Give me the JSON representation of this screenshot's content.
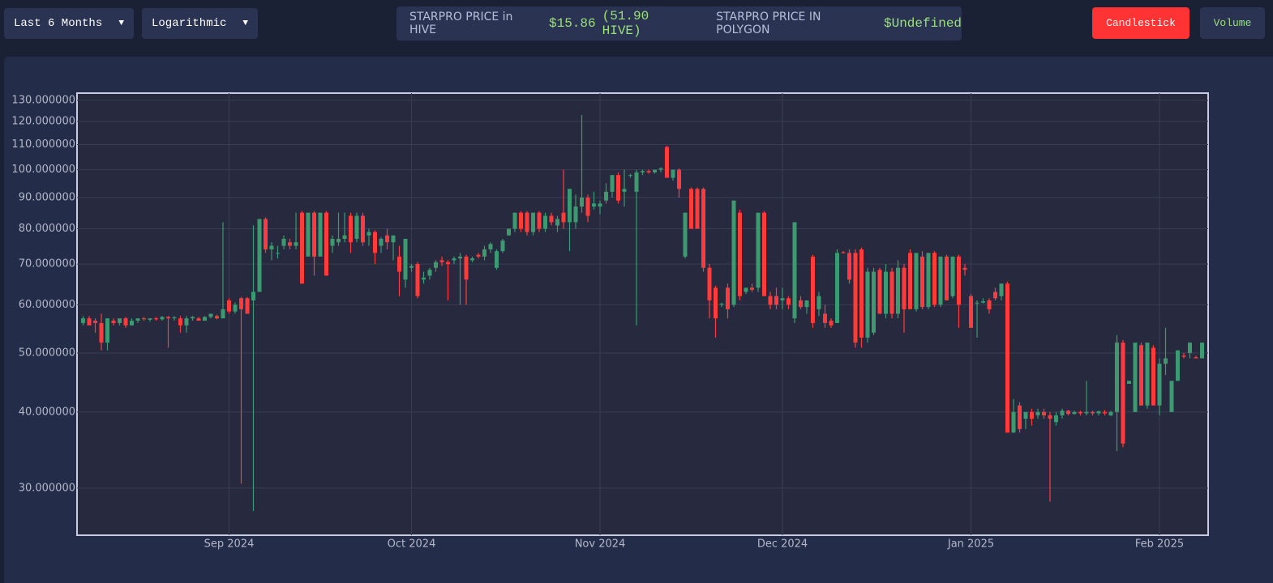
{
  "controls": {
    "range": "Last 6 Months",
    "scale": "Logarithmic",
    "price_hive_label": "STARPRO PRICE in HIVE",
    "price_hive_value": "$15.86",
    "price_hive_in_hive": "(51.90 HIVE)",
    "price_polygon_label": "STARPRO PRICE IN POLYGON",
    "price_polygon_value": "$Undefined",
    "candlestick_button": "Candlestick",
    "volume_button": "Volume"
  },
  "chart_data": {
    "type": "candlestick",
    "log_scale": true,
    "grid": true,
    "up_color": "#3d9970",
    "down_color": "#ff3b3b",
    "xlim": [
      "2024-08-07",
      "2025-02-09"
    ],
    "xticks": [
      {
        "value": "2024-09-01",
        "label": "Sep 2024"
      },
      {
        "value": "2024-10-01",
        "label": "Oct 2024"
      },
      {
        "value": "2024-11-01",
        "label": "Nov 2024"
      },
      {
        "value": "2024-12-01",
        "label": "Dec 2024"
      },
      {
        "value": "2025-01-01",
        "label": "Jan 2025"
      },
      {
        "value": "2025-02-01",
        "label": "Feb 2025"
      }
    ],
    "ylim": [
      25.1,
      133.6
    ],
    "yticks": [
      {
        "value": 30,
        "label": "30.000000"
      },
      {
        "value": 40,
        "label": "40.000000"
      },
      {
        "value": 50,
        "label": "50.000000"
      },
      {
        "value": 60,
        "label": "60.000000"
      },
      {
        "value": 70,
        "label": "70.000000"
      },
      {
        "value": 80,
        "label": "80.000000"
      },
      {
        "value": 90,
        "label": "90.000000"
      },
      {
        "value": 100,
        "label": "100.000000"
      },
      {
        "value": 110,
        "label": "110.000000"
      },
      {
        "value": 120,
        "label": "120.000000"
      },
      {
        "value": 130,
        "label": "130.000000"
      }
    ],
    "x": [
      "2024-08-08",
      "2024-08-09",
      "2024-08-10",
      "2024-08-11",
      "2024-08-12",
      "2024-08-13",
      "2024-08-14",
      "2024-08-15",
      "2024-08-16",
      "2024-08-17",
      "2024-08-18",
      "2024-08-19",
      "2024-08-20",
      "2024-08-21",
      "2024-08-22",
      "2024-08-23",
      "2024-08-24",
      "2024-08-25",
      "2024-08-26",
      "2024-08-27",
      "2024-08-28",
      "2024-08-29",
      "2024-08-30",
      "2024-08-31",
      "2024-09-01",
      "2024-09-02",
      "2024-09-03",
      "2024-09-04",
      "2024-09-05",
      "2024-09-06",
      "2024-09-07",
      "2024-09-08",
      "2024-09-09",
      "2024-09-10",
      "2024-09-11",
      "2024-09-12",
      "2024-09-13",
      "2024-09-14",
      "2024-09-15",
      "2024-09-16",
      "2024-09-17",
      "2024-09-18",
      "2024-09-19",
      "2024-09-20",
      "2024-09-21",
      "2024-09-22",
      "2024-09-23",
      "2024-09-24",
      "2024-09-25",
      "2024-09-26",
      "2024-09-27",
      "2024-09-28",
      "2024-09-29",
      "2024-09-30",
      "2024-10-01",
      "2024-10-02",
      "2024-10-03",
      "2024-10-04",
      "2024-10-05",
      "2024-10-06",
      "2024-10-07",
      "2024-10-08",
      "2024-10-09",
      "2024-10-10",
      "2024-10-11",
      "2024-10-12",
      "2024-10-13",
      "2024-10-14",
      "2024-10-15",
      "2024-10-16",
      "2024-10-17",
      "2024-10-18",
      "2024-10-19",
      "2024-10-20",
      "2024-10-21",
      "2024-10-22",
      "2024-10-23",
      "2024-10-24",
      "2024-10-25",
      "2024-10-26",
      "2024-10-27",
      "2024-10-28",
      "2024-10-29",
      "2024-10-30",
      "2024-10-31",
      "2024-11-01",
      "2024-11-02",
      "2024-11-03",
      "2024-11-04",
      "2024-11-05",
      "2024-11-06",
      "2024-11-07",
      "2024-11-08",
      "2024-11-09",
      "2024-11-10",
      "2024-11-11",
      "2024-11-12",
      "2024-11-13",
      "2024-11-14",
      "2024-11-15",
      "2024-11-16",
      "2024-11-17",
      "2024-11-18",
      "2024-11-19",
      "2024-11-20",
      "2024-11-21",
      "2024-11-22",
      "2024-11-23",
      "2024-11-24",
      "2024-11-25",
      "2024-11-26",
      "2024-11-27",
      "2024-11-28",
      "2024-11-29",
      "2024-11-30",
      "2024-12-01",
      "2024-12-02",
      "2024-12-03",
      "2024-12-04",
      "2024-12-05",
      "2024-12-06",
      "2024-12-07",
      "2024-12-08",
      "2024-12-09",
      "2024-12-10",
      "2024-12-11",
      "2024-12-12",
      "2024-12-13",
      "2024-12-14",
      "2024-12-15",
      "2024-12-16",
      "2024-12-17",
      "2024-12-18",
      "2024-12-19",
      "2024-12-20",
      "2024-12-21",
      "2024-12-22",
      "2024-12-23",
      "2024-12-24",
      "2024-12-25",
      "2024-12-26",
      "2024-12-27",
      "2024-12-28",
      "2024-12-29",
      "2024-12-30",
      "2024-12-31",
      "2025-01-01",
      "2025-01-02",
      "2025-01-03",
      "2025-01-04",
      "2025-01-05",
      "2025-01-06",
      "2025-01-07",
      "2025-01-08",
      "2025-01-09",
      "2025-01-10",
      "2025-01-11",
      "2025-01-12",
      "2025-01-13",
      "2025-01-14",
      "2025-01-15",
      "2025-01-16",
      "2025-01-17",
      "2025-01-18",
      "2025-01-19",
      "2025-01-20",
      "2025-01-21",
      "2025-01-22",
      "2025-01-23",
      "2025-01-24",
      "2025-01-25",
      "2025-01-26",
      "2025-01-27",
      "2025-01-28",
      "2025-01-29",
      "2025-01-30",
      "2025-01-31",
      "2025-02-01",
      "2025-02-02",
      "2025-02-03",
      "2025-02-04",
      "2025-02-05",
      "2025-02-06",
      "2025-02-07",
      "2025-02-08"
    ],
    "ohlc": [
      [
        56,
        57.5,
        55.5,
        57
      ],
      [
        57,
        57.5,
        55.5,
        55.5
      ],
      [
        56.5,
        57,
        54,
        56
      ],
      [
        56,
        58,
        50.5,
        52
      ],
      [
        52,
        57,
        50.5,
        57
      ],
      [
        56.5,
        57,
        55.5,
        56
      ],
      [
        56,
        57,
        55.5,
        57
      ],
      [
        57,
        57.3,
        55,
        55.5
      ],
      [
        55.5,
        57,
        55.5,
        56.5
      ],
      [
        56.5,
        57,
        56,
        57
      ],
      [
        57,
        57.3,
        56.5,
        56.8
      ],
      [
        56.7,
        57,
        56.3,
        57
      ],
      [
        57,
        57.3,
        56.5,
        56.8
      ],
      [
        56.8,
        57.5,
        56.5,
        57.3
      ],
      [
        57.3,
        57.5,
        51,
        57
      ],
      [
        57,
        57.5,
        56.5,
        57.2
      ],
      [
        57,
        57.5,
        54,
        55.5
      ],
      [
        55.5,
        57.5,
        54,
        57
      ],
      [
        57,
        57.5,
        56.5,
        57.3
      ],
      [
        57,
        57.3,
        56.5,
        56.5
      ],
      [
        56.5,
        57.5,
        56.5,
        57.3
      ],
      [
        57.3,
        58,
        57,
        58
      ],
      [
        57.5,
        57.8,
        56.8,
        57
      ],
      [
        57,
        82,
        57,
        59
      ],
      [
        61,
        61.5,
        58,
        58.5
      ],
      [
        58.5,
        60.5,
        58,
        60
      ],
      [
        61.5,
        61.8,
        30.5,
        59
      ],
      [
        61.5,
        61.8,
        58,
        58
      ],
      [
        61,
        81,
        27.5,
        63
      ],
      [
        63,
        83,
        63,
        83
      ],
      [
        83,
        83.5,
        73,
        74
      ],
      [
        74,
        76,
        71,
        75
      ],
      [
        73,
        75,
        71.5,
        73
      ],
      [
        75,
        78,
        74,
        77
      ],
      [
        76,
        77,
        74,
        75
      ],
      [
        75,
        85,
        74,
        76
      ],
      [
        85,
        85.5,
        65,
        65
      ],
      [
        72,
        85,
        72,
        85
      ],
      [
        85,
        85.5,
        67,
        72
      ],
      [
        72,
        85,
        72,
        85
      ],
      [
        85,
        85.5,
        67,
        67
      ],
      [
        75,
        78,
        73,
        77
      ],
      [
        76,
        85,
        75,
        77
      ],
      [
        77,
        85,
        76,
        78
      ],
      [
        84,
        85,
        73,
        76
      ],
      [
        77,
        85,
        76,
        84
      ],
      [
        84,
        85,
        75,
        76
      ],
      [
        78,
        80,
        75,
        79
      ],
      [
        79,
        79.5,
        70,
        73
      ],
      [
        75,
        77.5,
        73,
        77
      ],
      [
        78,
        80,
        74,
        76
      ],
      [
        76,
        78,
        71,
        78
      ],
      [
        72,
        75,
        62,
        68
      ],
      [
        66,
        77,
        64,
        77
      ],
      [
        69,
        70,
        68,
        69.5
      ],
      [
        70,
        70.5,
        61.5,
        62
      ],
      [
        66,
        68,
        65,
        66.5
      ],
      [
        67,
        69,
        66,
        68.5
      ],
      [
        69,
        71,
        68,
        70.5
      ],
      [
        71,
        72,
        69.5,
        70.5
      ],
      [
        70.5,
        71,
        61,
        70
      ],
      [
        71,
        72,
        70,
        71.5
      ],
      [
        71.5,
        73,
        60,
        72
      ],
      [
        72,
        72.5,
        60,
        66
      ],
      [
        71,
        72,
        70.5,
        71.5
      ],
      [
        72.5,
        73,
        71.5,
        72
      ],
      [
        72,
        75,
        71,
        74
      ],
      [
        74,
        76,
        73,
        75.5
      ],
      [
        69,
        74,
        68.5,
        73.5
      ],
      [
        73.5,
        77,
        73,
        76.5
      ],
      [
        78,
        80,
        78,
        80
      ],
      [
        80,
        85,
        79,
        85
      ],
      [
        85,
        85.5,
        79,
        80
      ],
      [
        85,
        85.5,
        78,
        79
      ],
      [
        79,
        85,
        78,
        85
      ],
      [
        85,
        85.5,
        79,
        80
      ],
      [
        80,
        85,
        79,
        84
      ],
      [
        84,
        85,
        81,
        82
      ],
      [
        81,
        84,
        79,
        83
      ],
      [
        85,
        100,
        80,
        82
      ],
      [
        82,
        93,
        73.5,
        93
      ],
      [
        82,
        91,
        80,
        87
      ],
      [
        87,
        123,
        85,
        90
      ],
      [
        90,
        91,
        82,
        84
      ],
      [
        87,
        92,
        86,
        88
      ],
      [
        87,
        89,
        84.5,
        88
      ],
      [
        89,
        95,
        88,
        92
      ],
      [
        92,
        98,
        90,
        98
      ],
      [
        98,
        99,
        88,
        89
      ],
      [
        92,
        100,
        87,
        93
      ],
      [
        98,
        98.5,
        97,
        98
      ],
      [
        92,
        100,
        55.5,
        99
      ],
      [
        99,
        100,
        98,
        99.5
      ],
      [
        99.5,
        100,
        98.5,
        99
      ],
      [
        99,
        100,
        98.5,
        100
      ],
      [
        100,
        101,
        99,
        100.5
      ],
      [
        109,
        109.5,
        97,
        97
      ],
      [
        97,
        100,
        96,
        100
      ],
      [
        100,
        100.5,
        90,
        93
      ],
      [
        72,
        85,
        71.5,
        85
      ],
      [
        93,
        93.5,
        80,
        80
      ],
      [
        93,
        93.5,
        80,
        80
      ],
      [
        93,
        93.5,
        68,
        69
      ],
      [
        69,
        70,
        57,
        61
      ],
      [
        64,
        64.5,
        53,
        57
      ],
      [
        60,
        60.5,
        59.5,
        60.2
      ],
      [
        64,
        65,
        57,
        59
      ],
      [
        60,
        89,
        59.5,
        89
      ],
      [
        85,
        86,
        61,
        62
      ],
      [
        63,
        64,
        62.5,
        64
      ],
      [
        64,
        65,
        63,
        63.5
      ],
      [
        64,
        85,
        63,
        85
      ],
      [
        85,
        85.5,
        62,
        62
      ],
      [
        62,
        63,
        59,
        60
      ],
      [
        62,
        64,
        59,
        60
      ],
      [
        61,
        64,
        59,
        61.5
      ],
      [
        61.5,
        62,
        59,
        60
      ],
      [
        57,
        82,
        56,
        82
      ],
      [
        61,
        62,
        59,
        59.5
      ],
      [
        59.5,
        61,
        58,
        61
      ],
      [
        72,
        72.5,
        55,
        56
      ],
      [
        59,
        63,
        57.5,
        62
      ],
      [
        58,
        60,
        55,
        56
      ],
      [
        56.5,
        57,
        55,
        55.5
      ],
      [
        56,
        74,
        56,
        73
      ],
      [
        73.2,
        73.5,
        72.8,
        73
      ],
      [
        73,
        74,
        65,
        66
      ],
      [
        73,
        74,
        51,
        52
      ],
      [
        74,
        74.5,
        51,
        53
      ],
      [
        53,
        69,
        52,
        68
      ],
      [
        54,
        69,
        53.5,
        68
      ],
      [
        68.5,
        69,
        58,
        58
      ],
      [
        58,
        70,
        57,
        68
      ],
      [
        68,
        69,
        57,
        58
      ],
      [
        58,
        71,
        57,
        69
      ],
      [
        69,
        70,
        54,
        59
      ],
      [
        73,
        74,
        59,
        59
      ],
      [
        59,
        73,
        58.5,
        73
      ],
      [
        72,
        73.5,
        59,
        59.5
      ],
      [
        59.5,
        73,
        59,
        73
      ],
      [
        73,
        73.5,
        59.5,
        60
      ],
      [
        60,
        72,
        59.5,
        72
      ],
      [
        72,
        72.5,
        61,
        61
      ],
      [
        62,
        72,
        61.5,
        72
      ],
      [
        72,
        72.5,
        55,
        60
      ],
      [
        69,
        70,
        67,
        68.5
      ],
      [
        62,
        62.5,
        55,
        55
      ],
      [
        60.3,
        61,
        53,
        60.5
      ],
      [
        60.5,
        61.5,
        60.3,
        60.8
      ],
      [
        61,
        61.5,
        58,
        59
      ],
      [
        63,
        64,
        61,
        61.5
      ],
      [
        62,
        65,
        61,
        65
      ],
      [
        65,
        65.5,
        37,
        37
      ],
      [
        37,
        42,
        37,
        40
      ],
      [
        41,
        41.5,
        37,
        37.5
      ],
      [
        39,
        40,
        37.5,
        40
      ],
      [
        40,
        40.5,
        38,
        39
      ],
      [
        39.5,
        40.5,
        39,
        40
      ],
      [
        40,
        40.5,
        39,
        39.5
      ],
      [
        39.5,
        40,
        28.5,
        39
      ],
      [
        38.5,
        40,
        38,
        39.5
      ],
      [
        39.5,
        40.5,
        39,
        40.2
      ],
      [
        40.2,
        40.3,
        39.5,
        39.7
      ],
      [
        39.7,
        40.2,
        39.6,
        40
      ],
      [
        40,
        40.2,
        39.5,
        39.8
      ],
      [
        39.8,
        45,
        39.5,
        40
      ],
      [
        40,
        40.2,
        39.5,
        39.8
      ],
      [
        39.8,
        40.2,
        39.5,
        40.1
      ],
      [
        40,
        40.3,
        39.5,
        39.8
      ],
      [
        39.5,
        40.2,
        39.4,
        40
      ],
      [
        40,
        53.5,
        34.5,
        52
      ],
      [
        52,
        52.5,
        35,
        35.5
      ],
      [
        44.5,
        45,
        44.5,
        45
      ],
      [
        40,
        52,
        40,
        52
      ],
      [
        51.5,
        52,
        41,
        41
      ],
      [
        41,
        52,
        40.5,
        52
      ],
      [
        51,
        51.5,
        41,
        41
      ],
      [
        41,
        49,
        39.5,
        48
      ],
      [
        48,
        55,
        46,
        49
      ],
      [
        40,
        45,
        40,
        45
      ],
      [
        45,
        50.5,
        45,
        50.5
      ],
      [
        49.5,
        50,
        49,
        49.3
      ],
      [
        50,
        52,
        49,
        52
      ],
      [
        49.2,
        49.5,
        49,
        49
      ],
      [
        49,
        52,
        49,
        52
      ]
    ]
  }
}
